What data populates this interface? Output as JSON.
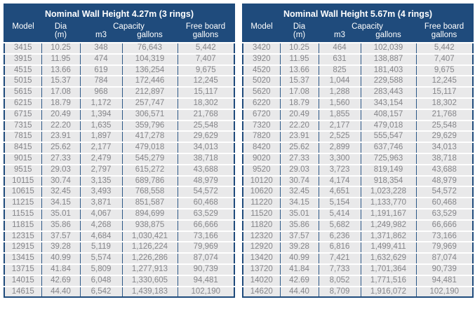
{
  "colors": {
    "header_bg": "#1f4b7c",
    "column_divider": "#2b5787",
    "row_bg": "#e9e9ea",
    "row_text": "#86868a",
    "header_text": "#ffffff",
    "row_separator": "#ffffff",
    "page_bg": "#ffffff"
  },
  "tables": [
    {
      "title": "Nominal Wall Height 4.27m (3 rings)",
      "headers": {
        "model": "Model",
        "dia": "Dia",
        "dia_unit": "(m)",
        "capacity": "Capacity",
        "capacity_m3": "m3",
        "capacity_gallons": "gallons",
        "freeboard": "Free board",
        "freeboard_unit": "gallons"
      },
      "rows": [
        [
          "3415",
          "10.25",
          "348",
          "76,643",
          "5,442"
        ],
        [
          "3915",
          "11.95",
          "474",
          "104,319",
          "7,407"
        ],
        [
          "4515",
          "13.66",
          "619",
          "136,254",
          "9,675"
        ],
        [
          "5015",
          "15.37",
          "784",
          "172,446",
          "12,245"
        ],
        [
          "5615",
          "17.08",
          "968",
          "212,897",
          "15,117"
        ],
        [
          "6215",
          "18.79",
          "1,172",
          "257,747",
          "18,302"
        ],
        [
          "6715",
          "20.49",
          "1,394",
          "306,571",
          "21,768"
        ],
        [
          "7315",
          "22.20",
          "1,635",
          "359,796",
          "25,548"
        ],
        [
          "7815",
          "23.91",
          "1,897",
          "417,278",
          "29,629"
        ],
        [
          "8415",
          "25.62",
          "2,177",
          "479,018",
          "34,013"
        ],
        [
          "9015",
          "27.33",
          "2,479",
          "545,279",
          "38,718"
        ],
        [
          "9515",
          "29.03",
          "2,797",
          "615,272",
          "43,688"
        ],
        [
          "10115",
          "30.74",
          "3,135",
          "689,786",
          "48,979"
        ],
        [
          "10615",
          "32.45",
          "3,493",
          "768,558",
          "54,572"
        ],
        [
          "11215",
          "34.15",
          "3,871",
          "851,587",
          "60,468"
        ],
        [
          "11515",
          "35.01",
          "4,067",
          "894,699",
          "63,529"
        ],
        [
          "11815",
          "35.86",
          "4,268",
          "938,875",
          "66,666"
        ],
        [
          "12315",
          "37.57",
          "4,684",
          "1,030,421",
          "73,166"
        ],
        [
          "12915",
          "39.28",
          "5,119",
          "1,126,224",
          "79,969"
        ],
        [
          "13415",
          "40.99",
          "5,574",
          "1,226,286",
          "87,074"
        ],
        [
          "13715",
          "41.84",
          "5,809",
          "1,277,913",
          "90,739"
        ],
        [
          "14015",
          "42.69",
          "6,048",
          "1,330,605",
          "94,481"
        ],
        [
          "14615",
          "44.40",
          "6,542",
          "1,439,183",
          "102,190"
        ]
      ]
    },
    {
      "title": "Nominal Wall Height 5.67m (4 rings)",
      "headers": {
        "model": "Model",
        "dia": "Dia",
        "dia_unit": "(m)",
        "capacity": "Capacity",
        "capacity_m3": "m3",
        "capacity_gallons": "gallons",
        "freeboard": "Free board",
        "freeboard_unit": "gallons"
      },
      "rows": [
        [
          "3420",
          "10.25",
          "464",
          "102,039",
          "5,442"
        ],
        [
          "3920",
          "11.95",
          "631",
          "138,887",
          "7,407"
        ],
        [
          "4520",
          "13.66",
          "825",
          "181,403",
          "9,675"
        ],
        [
          "5020",
          "15.37",
          "1,044",
          "229,588",
          "12,245"
        ],
        [
          "5620",
          "17.08",
          "1,288",
          "283,443",
          "15,117"
        ],
        [
          "6220",
          "18.79",
          "1,560",
          "343,154",
          "18,302"
        ],
        [
          "6720",
          "20.49",
          "1,855",
          "408,157",
          "21,768"
        ],
        [
          "7320",
          "22.20",
          "2,177",
          "479,018",
          "25,548"
        ],
        [
          "7820",
          "23.91",
          "2,525",
          "555,547",
          "29,629"
        ],
        [
          "8420",
          "25.62",
          "2,899",
          "637,746",
          "34,013"
        ],
        [
          "9020",
          "27.33",
          "3,300",
          "725,963",
          "38,718"
        ],
        [
          "9520",
          "29.03",
          "3,723",
          "819,149",
          "43,688"
        ],
        [
          "10120",
          "30.74",
          "4,174",
          "918,354",
          "48,979"
        ],
        [
          "10620",
          "32.45",
          "4,651",
          "1,023,228",
          "54,572"
        ],
        [
          "11220",
          "34.15",
          "5,154",
          "1,133,770",
          "60,468"
        ],
        [
          "11520",
          "35.01",
          "5,414",
          "1,191,167",
          "63,529"
        ],
        [
          "11820",
          "35.86",
          "5,682",
          "1,249,982",
          "66,666"
        ],
        [
          "12320",
          "37.57",
          "6,236",
          "1,371,862",
          "73,166"
        ],
        [
          "12920",
          "39.28",
          "6,816",
          "1,499,411",
          "79,969"
        ],
        [
          "13420",
          "40.99",
          "7,421",
          "1,632,629",
          "87,074"
        ],
        [
          "13720",
          "41.84",
          "7,733",
          "1,701,364",
          "90,739"
        ],
        [
          "14020",
          "42.69",
          "8,052",
          "1,771,516",
          "94,481"
        ],
        [
          "14620",
          "44.40",
          "8,709",
          "1,916,072",
          "102,190"
        ]
      ]
    }
  ]
}
